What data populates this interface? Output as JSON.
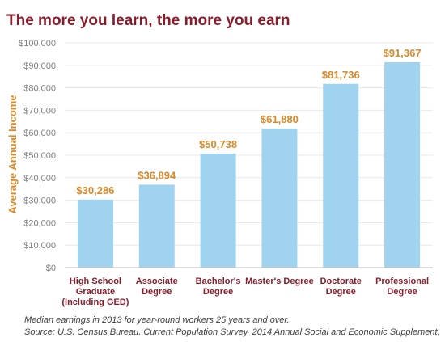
{
  "chart_data": {
    "type": "bar",
    "title": "The more you learn, the more you earn",
    "ylabel": "Average Annual Income",
    "xlabel": "",
    "ylim": [
      0,
      100000
    ],
    "yticks": [
      "$0",
      "$10,000",
      "$20,000",
      "$30,000",
      "$40,000",
      "$50,000",
      "$60,000",
      "$70,000",
      "$80,000",
      "$90,000",
      "$100,000"
    ],
    "categories": [
      [
        "High School",
        "Graduate",
        "(Including GED)"
      ],
      [
        "Associate",
        "Degree"
      ],
      [
        "Bachelor's",
        "Degree"
      ],
      [
        "Master's Degree"
      ],
      [
        "Doctorate",
        "Degree"
      ],
      [
        "Professional",
        "Degree"
      ]
    ],
    "values": [
      30286,
      36894,
      50738,
      61880,
      81736,
      91367
    ],
    "data_labels": [
      "$30,286",
      "$36,894",
      "$50,738",
      "$61,880",
      "$81,736",
      "$91,367"
    ],
    "grid": true,
    "legend": "none"
  },
  "notes": {
    "line1": "Median earnings in 2013 for year-round workers 25 years and over.",
    "line2": "Source: U.S. Census Bureau. Current Population Survey. 2014 Annual Social and Economic Supplement."
  },
  "colors": {
    "bar": "#9fd3ef",
    "title": "#8a1c2b",
    "value_label": "#d9892a"
  }
}
